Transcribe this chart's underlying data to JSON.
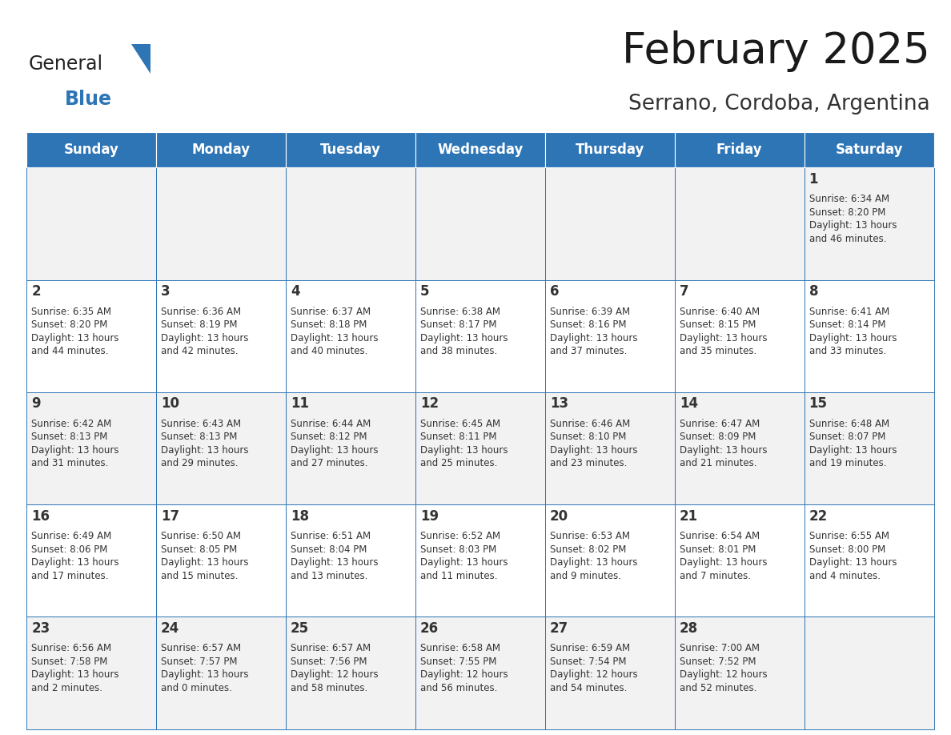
{
  "title": "February 2025",
  "subtitle": "Serrano, Cordoba, Argentina",
  "header_bg": "#2E75B6",
  "header_text_color": "#FFFFFF",
  "cell_bg_even": "#F2F2F2",
  "cell_bg_odd": "#FFFFFF",
  "border_color": "#2E75B6",
  "day_number_color": "#333333",
  "cell_text_color": "#333333",
  "days_of_week": [
    "Sunday",
    "Monday",
    "Tuesday",
    "Wednesday",
    "Thursday",
    "Friday",
    "Saturday"
  ],
  "logo_general_color": "#222222",
  "logo_blue_color": "#2E75B6",
  "calendar_data": [
    [
      null,
      null,
      null,
      null,
      null,
      null,
      {
        "day": 1,
        "sunrise": "6:34 AM",
        "sunset": "8:20 PM",
        "daylight": "13 hours\nand 46 minutes."
      }
    ],
    [
      {
        "day": 2,
        "sunrise": "6:35 AM",
        "sunset": "8:20 PM",
        "daylight": "13 hours\nand 44 minutes."
      },
      {
        "day": 3,
        "sunrise": "6:36 AM",
        "sunset": "8:19 PM",
        "daylight": "13 hours\nand 42 minutes."
      },
      {
        "day": 4,
        "sunrise": "6:37 AM",
        "sunset": "8:18 PM",
        "daylight": "13 hours\nand 40 minutes."
      },
      {
        "day": 5,
        "sunrise": "6:38 AM",
        "sunset": "8:17 PM",
        "daylight": "13 hours\nand 38 minutes."
      },
      {
        "day": 6,
        "sunrise": "6:39 AM",
        "sunset": "8:16 PM",
        "daylight": "13 hours\nand 37 minutes."
      },
      {
        "day": 7,
        "sunrise": "6:40 AM",
        "sunset": "8:15 PM",
        "daylight": "13 hours\nand 35 minutes."
      },
      {
        "day": 8,
        "sunrise": "6:41 AM",
        "sunset": "8:14 PM",
        "daylight": "13 hours\nand 33 minutes."
      }
    ],
    [
      {
        "day": 9,
        "sunrise": "6:42 AM",
        "sunset": "8:13 PM",
        "daylight": "13 hours\nand 31 minutes."
      },
      {
        "day": 10,
        "sunrise": "6:43 AM",
        "sunset": "8:13 PM",
        "daylight": "13 hours\nand 29 minutes."
      },
      {
        "day": 11,
        "sunrise": "6:44 AM",
        "sunset": "8:12 PM",
        "daylight": "13 hours\nand 27 minutes."
      },
      {
        "day": 12,
        "sunrise": "6:45 AM",
        "sunset": "8:11 PM",
        "daylight": "13 hours\nand 25 minutes."
      },
      {
        "day": 13,
        "sunrise": "6:46 AM",
        "sunset": "8:10 PM",
        "daylight": "13 hours\nand 23 minutes."
      },
      {
        "day": 14,
        "sunrise": "6:47 AM",
        "sunset": "8:09 PM",
        "daylight": "13 hours\nand 21 minutes."
      },
      {
        "day": 15,
        "sunrise": "6:48 AM",
        "sunset": "8:07 PM",
        "daylight": "13 hours\nand 19 minutes."
      }
    ],
    [
      {
        "day": 16,
        "sunrise": "6:49 AM",
        "sunset": "8:06 PM",
        "daylight": "13 hours\nand 17 minutes."
      },
      {
        "day": 17,
        "sunrise": "6:50 AM",
        "sunset": "8:05 PM",
        "daylight": "13 hours\nand 15 minutes."
      },
      {
        "day": 18,
        "sunrise": "6:51 AM",
        "sunset": "8:04 PM",
        "daylight": "13 hours\nand 13 minutes."
      },
      {
        "day": 19,
        "sunrise": "6:52 AM",
        "sunset": "8:03 PM",
        "daylight": "13 hours\nand 11 minutes."
      },
      {
        "day": 20,
        "sunrise": "6:53 AM",
        "sunset": "8:02 PM",
        "daylight": "13 hours\nand 9 minutes."
      },
      {
        "day": 21,
        "sunrise": "6:54 AM",
        "sunset": "8:01 PM",
        "daylight": "13 hours\nand 7 minutes."
      },
      {
        "day": 22,
        "sunrise": "6:55 AM",
        "sunset": "8:00 PM",
        "daylight": "13 hours\nand 4 minutes."
      }
    ],
    [
      {
        "day": 23,
        "sunrise": "6:56 AM",
        "sunset": "7:58 PM",
        "daylight": "13 hours\nand 2 minutes."
      },
      {
        "day": 24,
        "sunrise": "6:57 AM",
        "sunset": "7:57 PM",
        "daylight": "13 hours\nand 0 minutes."
      },
      {
        "day": 25,
        "sunrise": "6:57 AM",
        "sunset": "7:56 PM",
        "daylight": "12 hours\nand 58 minutes."
      },
      {
        "day": 26,
        "sunrise": "6:58 AM",
        "sunset": "7:55 PM",
        "daylight": "12 hours\nand 56 minutes."
      },
      {
        "day": 27,
        "sunrise": "6:59 AM",
        "sunset": "7:54 PM",
        "daylight": "12 hours\nand 54 minutes."
      },
      {
        "day": 28,
        "sunrise": "7:00 AM",
        "sunset": "7:52 PM",
        "daylight": "12 hours\nand 52 minutes."
      },
      null
    ]
  ]
}
